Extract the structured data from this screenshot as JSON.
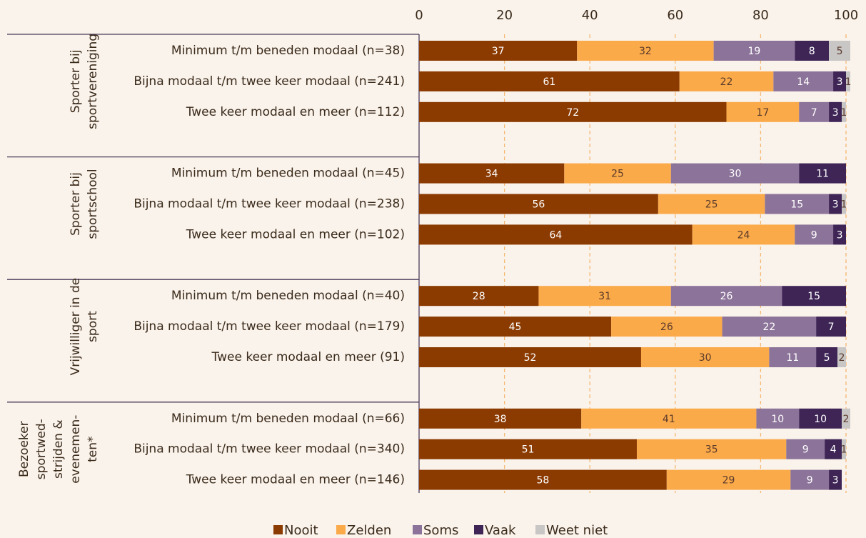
{
  "chart_data": {
    "type": "stacked_bar_horizontal",
    "xlim": [
      0,
      100
    ],
    "xticks": [
      0,
      20,
      40,
      60,
      80,
      100
    ],
    "grid": true,
    "groups": [
      {
        "name": [
          "Sporter bij",
          "sportvereniging"
        ]
      },
      {
        "name": [
          "Sporter bij",
          "sportschool"
        ]
      },
      {
        "name": [
          "Vrijwilliger in de",
          "sport"
        ]
      },
      {
        "name": [
          "Bezoeker",
          "sportwed-",
          "strijden &",
          "evenemen-",
          "ten*"
        ]
      }
    ],
    "categories": [
      "Minimum t/m beneden modaal (n=38)",
      "Bijna modaal t/m twee keer modaal (n=241)",
      "Twee keer modaal en meer (n=112)",
      "Minimum t/m beneden modaal  (n=45)",
      "Bijna modaal t/m twee keer modaal (n=238)",
      "Twee keer modaal en meer (n=102)",
      "Minimum t/m beneden modaal (n=40)",
      "Bijna modaal t/m twee keer modaal (n=179)",
      "Twee keer modaal en meer (91)",
      "Minimum t/m beneden modaal  (n=66)",
      "Bijna modaal t/m twee keer modaal (n=340)",
      "Twee keer modaal en meer (n=146)"
    ],
    "series": [
      {
        "name": "Nooit",
        "color": "#8b3a00",
        "values": [
          37,
          61,
          72,
          34,
          56,
          64,
          28,
          45,
          52,
          38,
          51,
          58
        ]
      },
      {
        "name": "Zelden",
        "color": "#fbaa4a",
        "values": [
          32,
          22,
          17,
          25,
          25,
          24,
          31,
          26,
          30,
          41,
          35,
          29
        ]
      },
      {
        "name": "Soms",
        "color": "#8c7399",
        "values": [
          19,
          14,
          7,
          30,
          15,
          9,
          26,
          22,
          11,
          10,
          9,
          9
        ]
      },
      {
        "name": "Vaak",
        "color": "#3e2556",
        "values": [
          8,
          3,
          3,
          11,
          3,
          3,
          15,
          7,
          5,
          10,
          4,
          3
        ]
      },
      {
        "name": "Weet niet",
        "color": "#c9c6c6",
        "values": [
          5,
          1,
          1,
          null,
          1,
          null,
          null,
          null,
          2,
          2,
          1,
          null
        ]
      }
    ]
  }
}
